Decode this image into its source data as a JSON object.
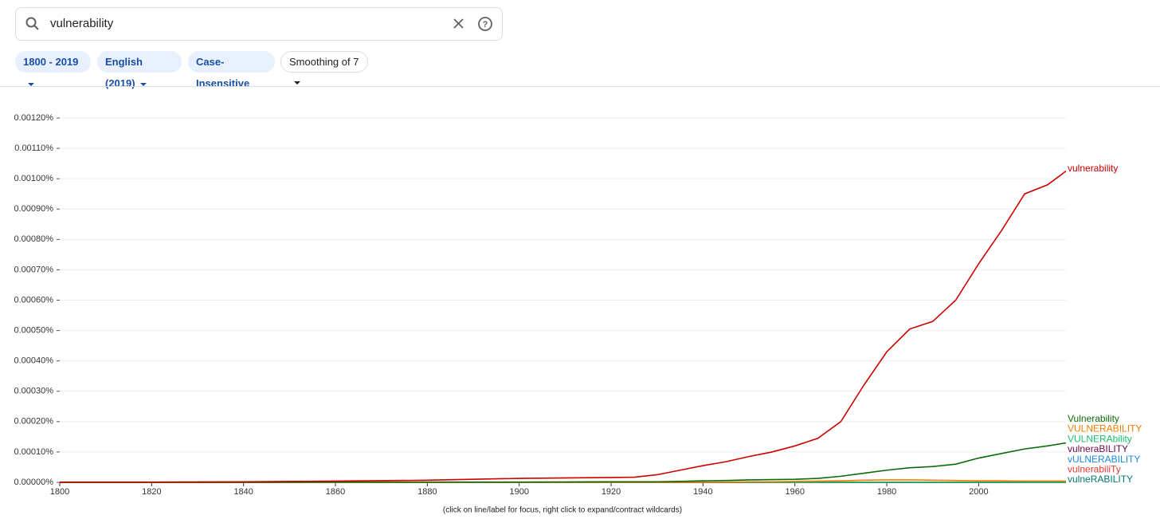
{
  "ui": {
    "search": "vulnerability",
    "chips": [
      "1800 - 2019",
      "English (2019)",
      "Case-Insensitive",
      "Smoothing of 7"
    ],
    "note": "(click on line/label for focus, right click to expand/contract wildcards)"
  },
  "chart_data": {
    "type": "line",
    "x": [
      1800,
      1820,
      1840,
      1860,
      1880,
      1900,
      1920,
      1925,
      1930,
      1935,
      1940,
      1945,
      1950,
      1955,
      1960,
      1965,
      1970,
      1975,
      1980,
      1985,
      1990,
      1995,
      2000,
      2005,
      2010,
      2015,
      2019
    ],
    "xlim": [
      1800,
      2019
    ],
    "xticks": [
      1800,
      1820,
      1840,
      1860,
      1880,
      1900,
      1920,
      1940,
      1960,
      1980,
      2000
    ],
    "ylim": [
      0,
      0.0012
    ],
    "yticks": [
      {
        "value": 0,
        "label": "0.00000%"
      },
      {
        "value": 0.0001,
        "label": "0.00010%"
      },
      {
        "value": 0.0002,
        "label": "0.00020%"
      },
      {
        "value": 0.0003,
        "label": "0.00030%"
      },
      {
        "value": 0.0004,
        "label": "0.00040%"
      },
      {
        "value": 0.0005,
        "label": "0.00050%"
      },
      {
        "value": 0.0006,
        "label": "0.00060%"
      },
      {
        "value": 0.0007,
        "label": "0.00070%"
      },
      {
        "value": 0.0008,
        "label": "0.00080%"
      },
      {
        "value": 0.0009,
        "label": "0.00090%"
      },
      {
        "value": 0.001,
        "label": "0.00100%"
      },
      {
        "value": 0.0011,
        "label": "0.00110%"
      },
      {
        "value": 0.0012,
        "label": "0.00120%"
      }
    ],
    "grid": true,
    "series": [
      {
        "name": "vulnerability",
        "color": "#cc0000",
        "values": [
          1e-06,
          1e-06,
          2e-06,
          4e-06,
          7e-06,
          1.3e-05,
          1.6e-05,
          1.7e-05,
          2.5e-05,
          4e-05,
          5.5e-05,
          6.8e-05,
          8.5e-05,
          0.0001,
          0.00012,
          0.000145,
          0.0002,
          0.00032,
          0.00043,
          0.000505,
          0.00053,
          0.0006,
          0.00072,
          0.00083,
          0.00095,
          0.00098,
          0.001025
        ]
      },
      {
        "name": "Vulnerability",
        "color": "#0b6b0b",
        "values": [
          0,
          0,
          0,
          1e-06,
          1e-06,
          1e-06,
          2e-06,
          2e-06,
          2e-06,
          3e-06,
          5e-06,
          6e-06,
          8e-06,
          9e-06,
          1e-05,
          1.3e-05,
          2e-05,
          3e-05,
          4e-05,
          4.8e-05,
          5.2e-05,
          6e-05,
          8e-05,
          9.5e-05,
          0.00011,
          0.00012,
          0.00013
        ]
      },
      {
        "name": "VULNERABILITY",
        "color": "#f57c00",
        "values": [
          0,
          0,
          0,
          0,
          0,
          0,
          0,
          0,
          0,
          0,
          1e-06,
          1e-06,
          2e-06,
          2e-06,
          3e-06,
          4e-06,
          5e-06,
          7e-06,
          8e-06,
          8e-06,
          7e-06,
          6e-06,
          5e-06,
          5e-06,
          4e-06,
          4e-06,
          4e-06
        ]
      },
      {
        "name": "VULNERAbility",
        "color": "#1bbf6a",
        "values": [
          0,
          0,
          0,
          0,
          0,
          0,
          0,
          0,
          0,
          0,
          0,
          0,
          0,
          0,
          0,
          0,
          0,
          0,
          0,
          0,
          0,
          0,
          0,
          0,
          0,
          0,
          0
        ]
      },
      {
        "name": "vulneraBILITY",
        "color": "#6a0a4e",
        "values": [
          0,
          0,
          0,
          0,
          0,
          0,
          0,
          0,
          0,
          0,
          0,
          0,
          0,
          0,
          0,
          0,
          0,
          0,
          0,
          0,
          0,
          0,
          0,
          0,
          0,
          0,
          0
        ]
      },
      {
        "name": "vULNERABILITY",
        "color": "#1e88e5",
        "values": [
          0,
          0,
          0,
          0,
          0,
          0,
          0,
          0,
          0,
          0,
          0,
          0,
          0,
          0,
          0,
          0,
          0,
          0,
          0,
          0,
          0,
          0,
          0,
          0,
          0,
          0,
          0
        ]
      },
      {
        "name": "vulnerabiliTy",
        "color": "#e53935",
        "values": [
          0,
          0,
          0,
          0,
          0,
          0,
          0,
          0,
          0,
          0,
          0,
          0,
          0,
          0,
          0,
          0,
          0,
          0,
          0,
          0,
          0,
          0,
          0,
          0,
          0,
          0,
          0
        ]
      },
      {
        "name": "vulneRABILITY",
        "color": "#00796b",
        "values": [
          0,
          0,
          0,
          0,
          0,
          0,
          0,
          0,
          0,
          0,
          0,
          0,
          0,
          0,
          0,
          0,
          0,
          0,
          0,
          0,
          0,
          0,
          0,
          0,
          0,
          0,
          0
        ]
      }
    ]
  }
}
